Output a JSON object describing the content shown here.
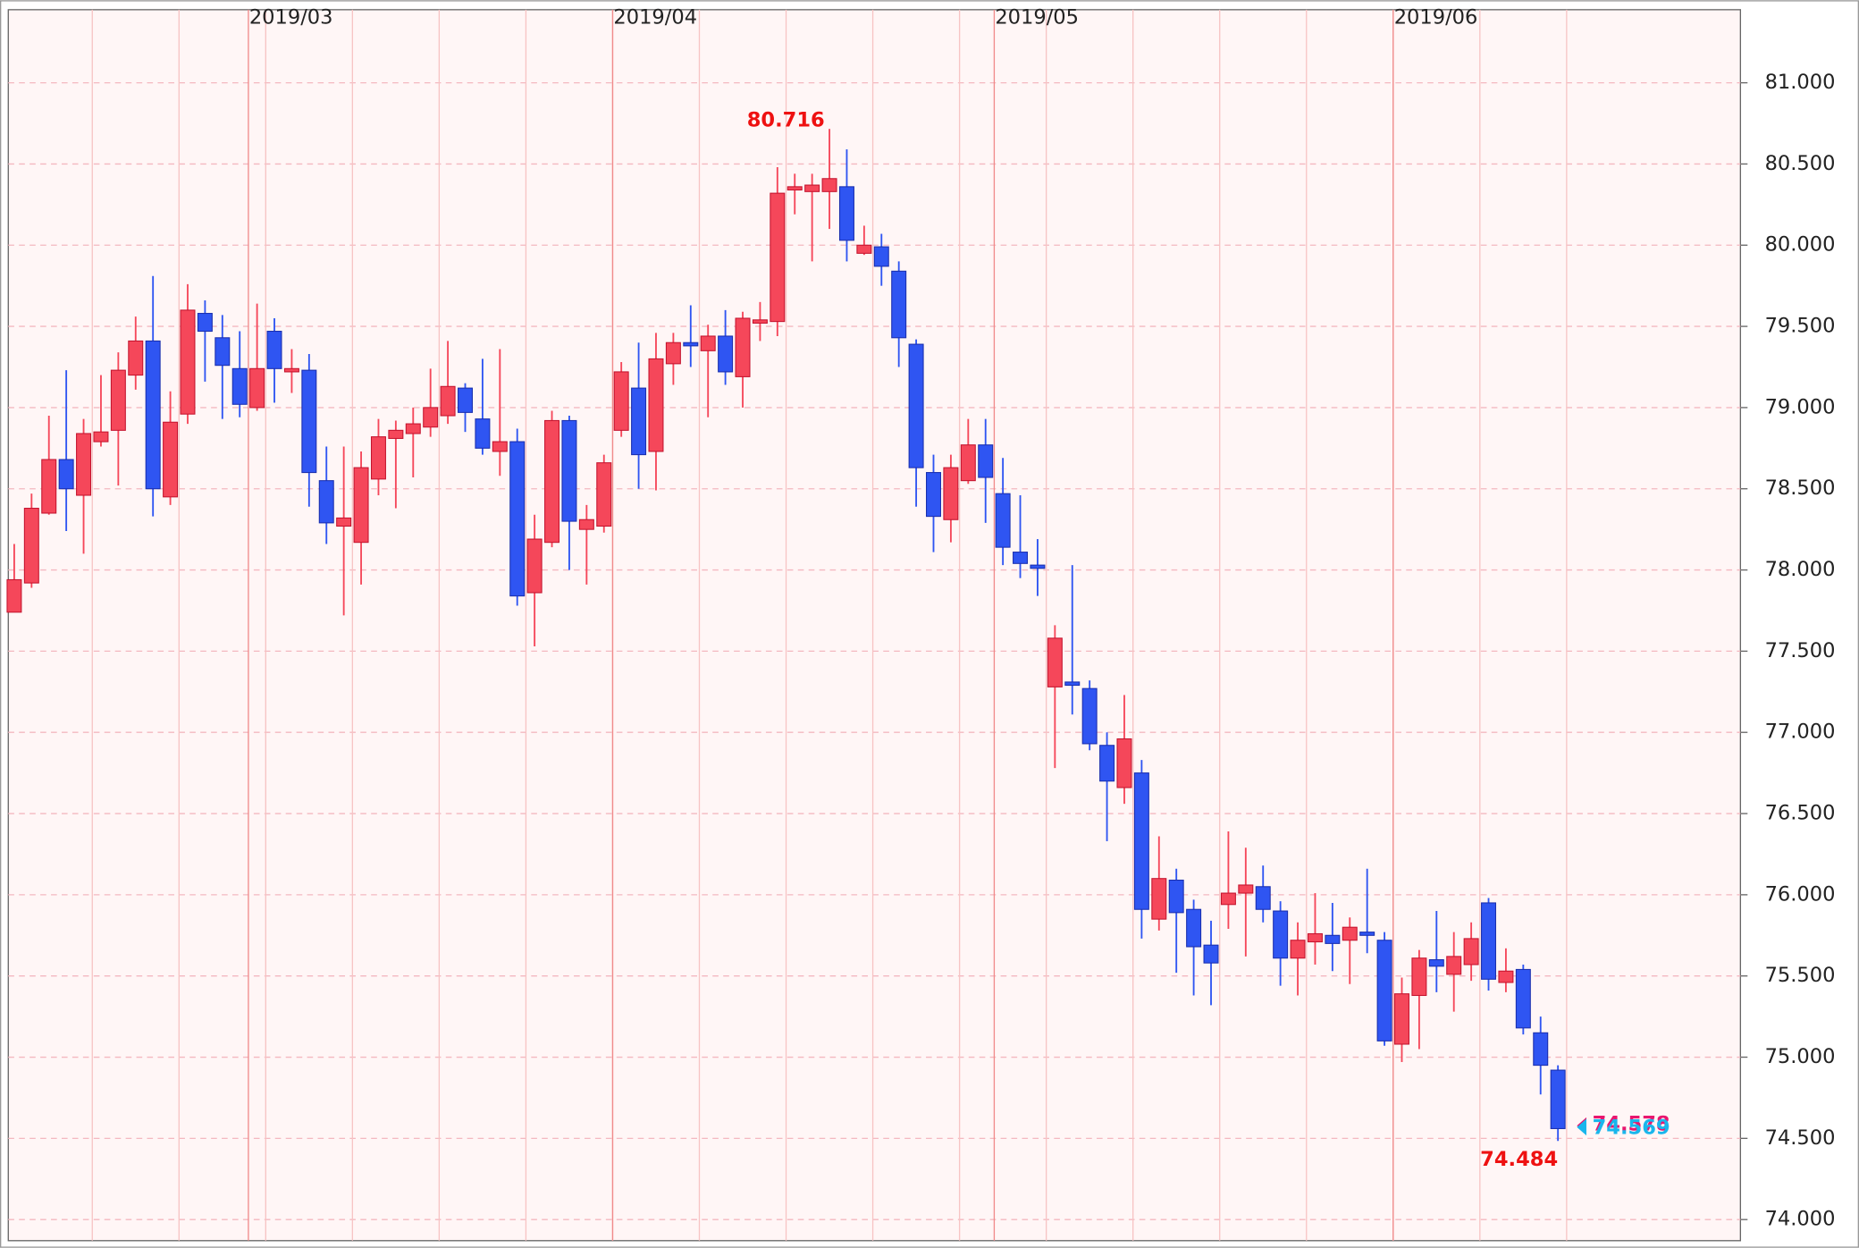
{
  "chart_data": {
    "type": "candlestick",
    "categories": [
      null,
      null,
      null,
      null,
      null,
      null,
      null,
      null,
      null,
      null,
      null,
      null,
      null,
      null,
      "2019/03",
      null,
      null,
      null,
      null,
      null,
      null,
      null,
      null,
      null,
      null,
      null,
      null,
      null,
      null,
      null,
      null,
      null,
      null,
      null,
      null,
      "2019/04",
      null,
      null,
      null,
      null,
      null,
      null,
      null,
      null,
      null,
      null,
      null,
      null,
      null,
      null,
      null,
      null,
      null,
      null,
      null,
      null,
      null,
      "2019/05",
      null,
      null,
      null,
      null,
      null,
      null,
      null,
      null,
      null,
      null,
      null,
      null,
      null,
      null,
      null,
      null,
      null,
      null,
      null,
      null,
      null,
      null,
      "2019/06",
      null,
      null,
      null,
      null,
      null,
      null,
      null,
      null,
      null
    ],
    "open": [
      77.74,
      77.92,
      78.35,
      78.68,
      78.46,
      78.79,
      78.86,
      79.2,
      79.41,
      78.45,
      78.96,
      79.58,
      79.43,
      79.24,
      79.0,
      79.47,
      79.22,
      79.23,
      78.55,
      78.27,
      78.17,
      78.56,
      78.81,
      78.84,
      78.88,
      78.95,
      79.12,
      78.93,
      78.73,
      78.79,
      77.86,
      78.17,
      78.92,
      78.25,
      78.27,
      78.86,
      79.12,
      78.73,
      79.27,
      79.4,
      79.35,
      79.44,
      79.19,
      79.52,
      79.53,
      80.34,
      80.33,
      80.33,
      80.36,
      79.95,
      79.99,
      79.84,
      79.39,
      78.6,
      78.31,
      78.55,
      78.77,
      78.47,
      78.11,
      78.03,
      77.28,
      77.31,
      77.27,
      76.92,
      76.66,
      76.75,
      75.85,
      76.09,
      75.91,
      75.69,
      75.94,
      76.01,
      76.05,
      75.9,
      75.61,
      75.71,
      75.75,
      75.72,
      75.77,
      75.72,
      75.08,
      75.38,
      75.6,
      75.51,
      75.57,
      75.95,
      75.46,
      75.54,
      75.15,
      74.92
    ],
    "high": [
      78.16,
      78.47,
      78.95,
      79.23,
      78.93,
      79.2,
      79.34,
      79.56,
      79.81,
      79.1,
      79.76,
      79.66,
      79.57,
      79.47,
      79.64,
      79.55,
      79.36,
      79.33,
      78.76,
      78.76,
      78.73,
      78.93,
      78.92,
      79.0,
      79.24,
      79.41,
      79.15,
      79.3,
      79.36,
      78.87,
      78.34,
      78.98,
      78.95,
      78.4,
      78.71,
      79.28,
      79.4,
      79.46,
      79.46,
      79.63,
      79.51,
      79.6,
      79.59,
      79.65,
      80.48,
      80.44,
      80.44,
      80.716,
      80.59,
      80.12,
      80.07,
      79.9,
      79.42,
      78.71,
      78.71,
      78.93,
      78.93,
      78.69,
      78.46,
      78.19,
      77.66,
      78.03,
      77.32,
      77.0,
      77.23,
      76.83,
      76.36,
      76.16,
      75.97,
      75.84,
      76.39,
      76.29,
      76.18,
      75.96,
      75.83,
      76.01,
      75.95,
      75.86,
      76.16,
      75.77,
      75.49,
      75.66,
      75.9,
      75.77,
      75.83,
      75.98,
      75.67,
      75.57,
      75.25,
      74.95
    ],
    "low": [
      77.74,
      77.89,
      78.34,
      78.24,
      78.1,
      78.76,
      78.52,
      79.11,
      78.33,
      78.4,
      78.9,
      79.16,
      78.93,
      78.94,
      78.98,
      79.03,
      79.09,
      78.39,
      78.16,
      77.72,
      77.91,
      78.46,
      78.38,
      78.57,
      78.82,
      78.9,
      78.85,
      78.71,
      78.58,
      77.78,
      77.53,
      78.14,
      78.0,
      77.91,
      78.23,
      78.82,
      78.5,
      78.49,
      79.14,
      79.25,
      78.94,
      79.14,
      79.0,
      79.41,
      79.44,
      80.19,
      79.9,
      80.1,
      79.9,
      79.94,
      79.75,
      79.25,
      78.39,
      78.11,
      78.17,
      78.53,
      78.29,
      78.03,
      77.95,
      77.84,
      76.78,
      77.11,
      76.89,
      76.33,
      76.56,
      75.73,
      75.78,
      75.52,
      75.38,
      75.32,
      75.79,
      75.62,
      75.83,
      75.44,
      75.38,
      75.57,
      75.53,
      75.45,
      75.64,
      75.07,
      74.97,
      75.05,
      75.4,
      75.28,
      75.47,
      75.41,
      75.4,
      75.14,
      74.77,
      74.484
    ],
    "close": [
      77.94,
      78.38,
      78.68,
      78.5,
      78.84,
      78.85,
      79.23,
      79.41,
      78.5,
      78.91,
      79.6,
      79.47,
      79.26,
      79.02,
      79.24,
      79.24,
      79.24,
      78.6,
      78.29,
      78.32,
      78.63,
      78.82,
      78.86,
      78.9,
      79.0,
      79.13,
      78.97,
      78.75,
      78.79,
      77.84,
      78.19,
      78.92,
      78.3,
      78.31,
      78.66,
      79.22,
      78.71,
      79.3,
      79.4,
      79.38,
      79.44,
      79.22,
      79.55,
      79.54,
      80.32,
      80.36,
      80.37,
      80.41,
      80.03,
      80.0,
      79.87,
      79.43,
      78.63,
      78.33,
      78.63,
      78.77,
      78.57,
      78.14,
      78.04,
      78.01,
      77.58,
      77.29,
      76.93,
      76.7,
      76.96,
      75.91,
      76.1,
      75.89,
      75.68,
      75.58,
      76.01,
      76.06,
      75.91,
      75.61,
      75.72,
      75.76,
      75.7,
      75.8,
      75.75,
      75.1,
      75.39,
      75.61,
      75.56,
      75.62,
      75.73,
      75.48,
      75.53,
      75.18,
      74.95,
      74.56
    ],
    "up_color": "#f5475a",
    "down_color": "#2f55f2",
    "last_prices": [
      {
        "value": 74.578,
        "color": "#e8166f"
      },
      {
        "value": 74.569,
        "color": "#19b6ec"
      }
    ],
    "ylim": [
      73.87,
      81.45
    ],
    "yticks": [
      {
        "value": 74,
        "label": "74.000"
      },
      {
        "value": 74.5,
        "label": "74.500"
      },
      {
        "value": 75,
        "label": "75.000"
      },
      {
        "value": 75.5,
        "label": "75.500"
      },
      {
        "value": 76,
        "label": "76.000"
      },
      {
        "value": 76.5,
        "label": "76.500"
      },
      {
        "value": 77,
        "label": "77.000"
      },
      {
        "value": 77.5,
        "label": "77.500"
      },
      {
        "value": 78,
        "label": "78.000"
      },
      {
        "value": 78.5,
        "label": "78.500"
      },
      {
        "value": 79,
        "label": "79.000"
      },
      {
        "value": 79.5,
        "label": "79.500"
      },
      {
        "value": 80,
        "label": "80.000"
      },
      {
        "value": 80.5,
        "label": "80.500"
      },
      {
        "value": 81,
        "label": "81.000"
      }
    ],
    "grid": true
  }
}
